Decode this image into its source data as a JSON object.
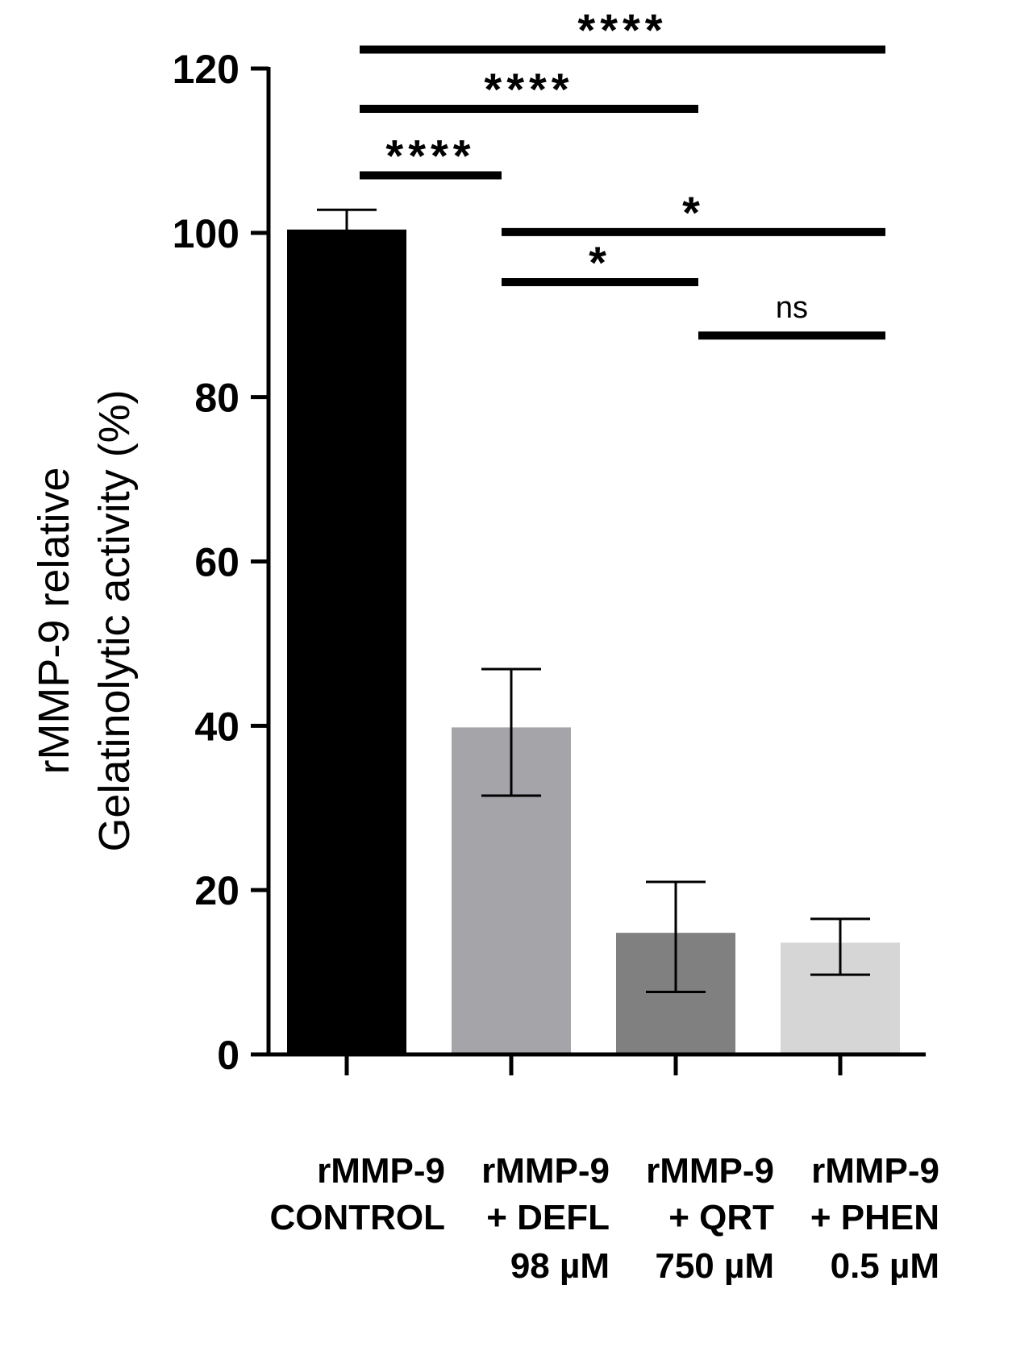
{
  "chart_data": {
    "type": "bar",
    "ylabel_lines": [
      "rMMP-9 relative",
      "Gelatinolytic activity (%)"
    ],
    "ylim": [
      0,
      120
    ],
    "yticks": [
      "0",
      "20",
      "40",
      "60",
      "80",
      "100",
      "120"
    ],
    "categories": [
      {
        "lines": [
          "rMMP-9",
          "CONTROL"
        ]
      },
      {
        "lines": [
          "rMMP-9",
          "+ DEFL",
          "98 µM"
        ]
      },
      {
        "lines": [
          "rMMP-9",
          "+ QRT",
          "750 µM"
        ]
      },
      {
        "lines": [
          "rMMP-9",
          "+ PHEN",
          "0.5 µM"
        ]
      }
    ],
    "values": [
      100.4,
      39.8,
      14.8,
      13.6
    ],
    "error_low": [
      98.4,
      31.5,
      7.6,
      9.7
    ],
    "error_high": [
      102.8,
      46.9,
      21.0,
      16.5
    ],
    "bar_colors": [
      "#000000",
      "#a5a4a9",
      "#808080",
      "#d6d6d6"
    ],
    "significance": [
      {
        "from": 0,
        "to": 3,
        "y": 122.3,
        "label": "****"
      },
      {
        "from": 0,
        "to": 2,
        "y": 115.1,
        "label": "****"
      },
      {
        "from": 0,
        "to": 1,
        "y": 107.0,
        "label": "****"
      },
      {
        "from": 1,
        "to": 3,
        "y": 100.1,
        "label": "*"
      },
      {
        "from": 1,
        "to": 2,
        "y": 94.0,
        "label": "*"
      },
      {
        "from": 2,
        "to": 3,
        "y": 87.5,
        "label": "ns"
      }
    ]
  }
}
